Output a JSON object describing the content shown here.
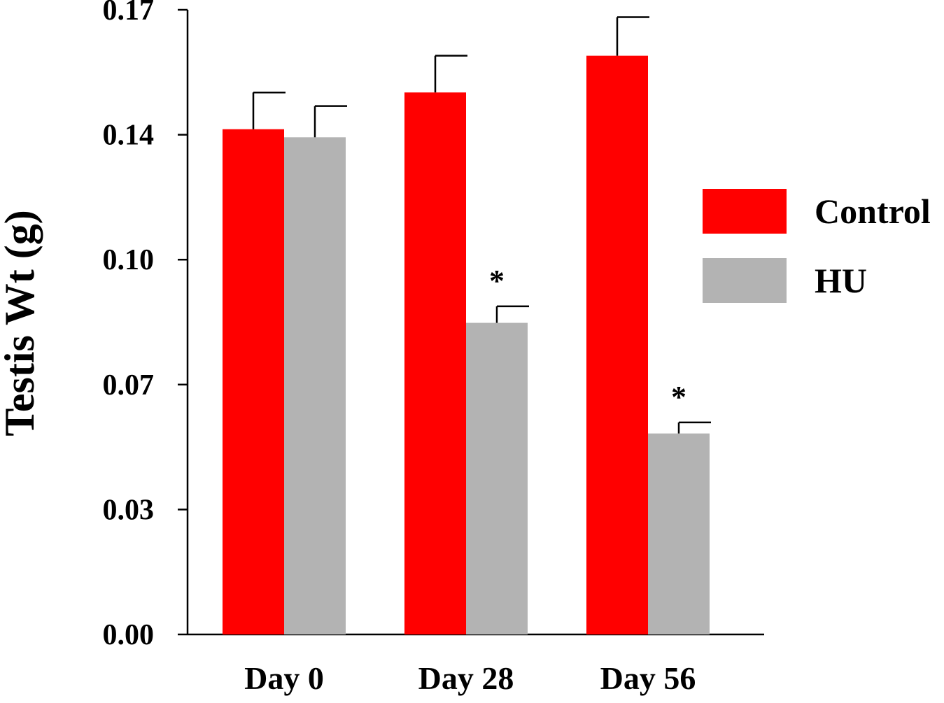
{
  "chart_data": {
    "type": "bar",
    "title": "",
    "xlabel": "",
    "ylabel": "Testis Wt (g)",
    "categories": [
      "Day 0",
      "Day 28",
      "Day 56"
    ],
    "ylim": [
      0,
      0.17
    ],
    "yticks": [
      0.0,
      0.034,
      0.068,
      0.102,
      0.136,
      0.17
    ],
    "ytick_labels": [
      "0.00",
      "0.03",
      "0.07",
      "0.10",
      "0.14",
      "0.17"
    ],
    "grid": false,
    "legend_position": "right",
    "series": [
      {
        "name": "Control",
        "color": "#ff0000",
        "values": [
          0.1375,
          0.1475,
          0.1575
        ],
        "errors": [
          0.01,
          0.01,
          0.0105
        ]
      },
      {
        "name": "HU",
        "color": "#b3b3b3",
        "values": [
          0.1353,
          0.0848,
          0.0547
        ],
        "errors": [
          0.0085,
          0.0045,
          0.003
        ]
      }
    ],
    "annotations": [
      {
        "text": "*",
        "series": 1,
        "category": 1
      },
      {
        "text": "*",
        "series": 1,
        "category": 2
      }
    ]
  }
}
